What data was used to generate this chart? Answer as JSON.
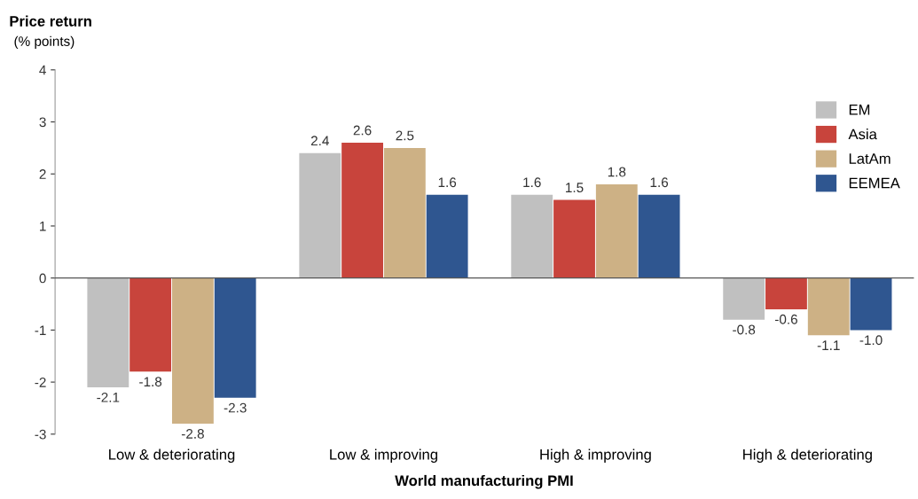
{
  "chart_data": {
    "type": "bar",
    "title": "Price return",
    "subtitle": "(% points)",
    "xlabel": "World manufacturing PMI",
    "categories": [
      "Low & deteriorating",
      "Low & improving",
      "High & improving",
      "High & deteriorating"
    ],
    "series": [
      {
        "name": "EM",
        "color": "#c0c0c0",
        "values": [
          -2.1,
          2.4,
          1.6,
          -0.8
        ],
        "value_labels": [
          "-2.1",
          "2.4",
          "1.6",
          "-0.8"
        ]
      },
      {
        "name": "Asia",
        "color": "#c8443c",
        "values": [
          -1.8,
          2.6,
          1.5,
          -0.6
        ],
        "value_labels": [
          "-1.8",
          "2.6",
          "1.5",
          "-0.6"
        ]
      },
      {
        "name": "LatAm",
        "color": "#cdb185",
        "values": [
          -2.8,
          2.5,
          1.8,
          -1.1
        ],
        "value_labels": [
          "-2.8",
          "2.5",
          "1.8",
          "-1.1"
        ]
      },
      {
        "name": "EEMEA",
        "color": "#2f5690",
        "values": [
          -2.3,
          1.6,
          1.6,
          -1.0
        ],
        "value_labels": [
          "-2.3",
          "1.6",
          "1.6",
          "-1.0"
        ]
      }
    ],
    "ylim": [
      -3,
      4
    ],
    "yticks": [
      -3,
      -2,
      -1,
      0,
      1,
      2,
      3,
      4
    ],
    "legend": "top right"
  }
}
